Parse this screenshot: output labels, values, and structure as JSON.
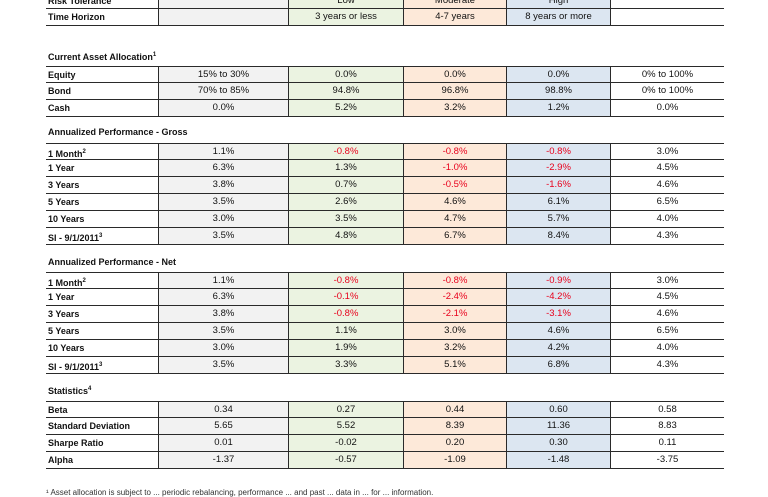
{
  "header_rows": [
    {
      "label": "Risk Tolerance",
      "values": [
        "",
        "Low",
        "Moderate",
        "High",
        ""
      ]
    },
    {
      "label": "Time Horizon",
      "values": [
        "",
        "3 years or less",
        "4-7 years",
        "8 years or more",
        ""
      ]
    }
  ],
  "sections": [
    {
      "title": "Current Asset Allocation",
      "sup": "1",
      "rows": [
        {
          "label": "Equity",
          "sup": "",
          "values": [
            "15% to 30%",
            "0.0%",
            "0.0%",
            "0.0%",
            "0% to 100%"
          ]
        },
        {
          "label": "Bond",
          "sup": "",
          "values": [
            "70% to 85%",
            "94.8%",
            "96.8%",
            "98.8%",
            "0% to 100%"
          ]
        },
        {
          "label": "Cash",
          "sup": "",
          "values": [
            "0.0%",
            "5.2%",
            "3.2%",
            "1.2%",
            "0.0%"
          ]
        }
      ]
    },
    {
      "title": "Annualized Performance - Gross",
      "sup": "",
      "rows": [
        {
          "label": "1 Month",
          "sup": "2",
          "values": [
            "1.1%",
            "-0.8%",
            "-0.8%",
            "-0.8%",
            "3.0%"
          ]
        },
        {
          "label": "1 Year",
          "sup": "",
          "values": [
            "6.3%",
            "1.3%",
            "-1.0%",
            "-2.9%",
            "4.5%"
          ]
        },
        {
          "label": "3 Years",
          "sup": "",
          "values": [
            "3.8%",
            "0.7%",
            "-0.5%",
            "-1.6%",
            "4.6%"
          ]
        },
        {
          "label": "5 Years",
          "sup": "",
          "values": [
            "3.5%",
            "2.6%",
            "4.6%",
            "6.1%",
            "6.5%"
          ]
        },
        {
          "label": "10 Years",
          "sup": "",
          "values": [
            "3.0%",
            "3.5%",
            "4.7%",
            "5.7%",
            "4.0%"
          ]
        },
        {
          "label": "SI - 9/1/2011",
          "sup": "3",
          "values": [
            "3.5%",
            "4.8%",
            "6.7%",
            "8.4%",
            "4.3%"
          ]
        }
      ]
    },
    {
      "title": "Annualized Performance - Net",
      "sup": "",
      "rows": [
        {
          "label": "1 Month",
          "sup": "2",
          "values": [
            "1.1%",
            "-0.8%",
            "-0.8%",
            "-0.9%",
            "3.0%"
          ]
        },
        {
          "label": "1 Year",
          "sup": "",
          "values": [
            "6.3%",
            "-0.1%",
            "-2.4%",
            "-4.2%",
            "4.5%"
          ]
        },
        {
          "label": "3 Years",
          "sup": "",
          "values": [
            "3.8%",
            "-0.8%",
            "-2.1%",
            "-3.1%",
            "4.6%"
          ]
        },
        {
          "label": "5 Years",
          "sup": "",
          "values": [
            "3.5%",
            "1.1%",
            "3.0%",
            "4.6%",
            "6.5%"
          ]
        },
        {
          "label": "10 Years",
          "sup": "",
          "values": [
            "3.0%",
            "1.9%",
            "3.2%",
            "4.2%",
            "4.0%"
          ]
        },
        {
          "label": "SI - 9/1/2011",
          "sup": "3",
          "values": [
            "3.5%",
            "3.3%",
            "5.1%",
            "6.8%",
            "4.3%"
          ]
        }
      ]
    },
    {
      "title": "Statistics",
      "sup": "4",
      "rows": [
        {
          "label": "Beta",
          "sup": "",
          "values": [
            "0.34",
            "0.27",
            "0.44",
            "0.60",
            "0.58"
          ]
        },
        {
          "label": "Standard Deviation",
          "sup": "",
          "values": [
            "5.65",
            "5.52",
            "8.39",
            "11.36",
            "8.83"
          ]
        },
        {
          "label": "Sharpe Ratio",
          "sup": "",
          "values": [
            "0.01",
            "-0.02",
            "0.20",
            "0.30",
            "0.11"
          ]
        },
        {
          "label": "Alpha",
          "sup": "",
          "values": [
            "-1.37",
            "-0.57",
            "-1.09",
            "-1.48",
            "-3.75"
          ]
        }
      ]
    }
  ],
  "footnote": "¹ Asset allocation is subject to ... periodic rebalancing, performance ... and past ... data in ... for ... information."
}
